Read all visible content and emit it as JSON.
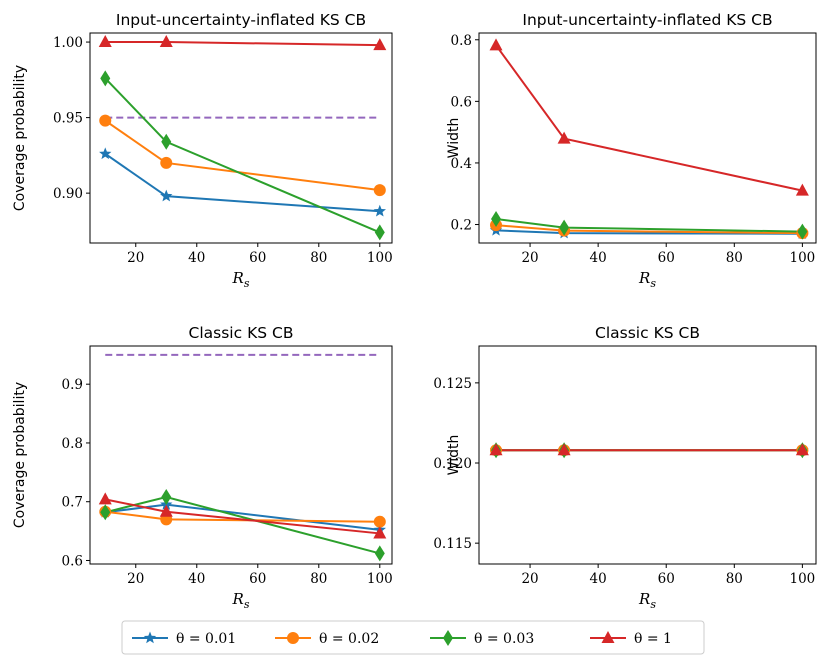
{
  "colors": {
    "theta_001": "#1f77b4",
    "theta_002": "#ff7f0e",
    "theta_003": "#2ca02c",
    "theta_1": "#d62728",
    "reference": "#9467bd"
  },
  "legend": {
    "placement": "bottom-center",
    "entries": [
      {
        "label": "θ = 0.01",
        "marker": "star-icon",
        "color": "#1f77b4"
      },
      {
        "label": "θ = 0.02",
        "marker": "circle-icon",
        "color": "#ff7f0e"
      },
      {
        "label": "θ = 0.03",
        "marker": "diamond-icon",
        "color": "#2ca02c"
      },
      {
        "label": "θ = 1",
        "marker": "triangle-icon",
        "color": "#d62728"
      }
    ]
  },
  "chart_data": [
    {
      "type": "line",
      "title": "Input-uncertainty-inflated KS CB",
      "xlabel": "R_s",
      "ylabel": "Coverage probability",
      "x": [
        10,
        30,
        100
      ],
      "xlim": [
        5,
        104
      ],
      "ylim": [
        0.867,
        1.006
      ],
      "xticks": [
        20,
        40,
        60,
        80,
        100
      ],
      "yticks": [
        0.9,
        0.95,
        1.0
      ],
      "ytick_labels": [
        "0.90",
        "0.95",
        "1.00"
      ],
      "reference_line": {
        "y": 0.95,
        "style": "dashed",
        "x_range": [
          10,
          100
        ]
      },
      "series": [
        {
          "name": "θ = 0.01",
          "values": [
            0.926,
            0.898,
            0.888
          ]
        },
        {
          "name": "θ = 0.02",
          "values": [
            0.948,
            0.92,
            0.902
          ]
        },
        {
          "name": "θ = 0.03",
          "values": [
            0.976,
            0.934,
            0.874
          ]
        },
        {
          "name": "θ = 1",
          "values": [
            1.0,
            1.0,
            0.998
          ]
        }
      ]
    },
    {
      "type": "line",
      "title": "Input-uncertainty-inflated KS CB",
      "xlabel": "R_s",
      "ylabel": "Width",
      "x": [
        10,
        30,
        100
      ],
      "xlim": [
        5,
        104
      ],
      "ylim": [
        0.14,
        0.822
      ],
      "xticks": [
        20,
        40,
        60,
        80,
        100
      ],
      "yticks": [
        0.2,
        0.4,
        0.6,
        0.8
      ],
      "ytick_labels": [
        "0.2",
        "0.4",
        "0.6",
        "0.8"
      ],
      "series": [
        {
          "name": "θ = 0.01",
          "values": [
            0.181,
            0.172,
            0.17
          ]
        },
        {
          "name": "θ = 0.02",
          "values": [
            0.198,
            0.18,
            0.172
          ]
        },
        {
          "name": "θ = 0.03",
          "values": [
            0.218,
            0.19,
            0.177
          ]
        },
        {
          "name": "θ = 1",
          "values": [
            0.782,
            0.479,
            0.31
          ]
        }
      ]
    },
    {
      "type": "line",
      "title": "Classic KS CB",
      "xlabel": "R_s",
      "ylabel": "Coverage probability",
      "x": [
        10,
        30,
        100
      ],
      "xlim": [
        5,
        104
      ],
      "ylim": [
        0.594,
        0.965
      ],
      "xticks": [
        20,
        40,
        60,
        80,
        100
      ],
      "yticks": [
        0.6,
        0.7,
        0.8,
        0.9
      ],
      "ytick_labels": [
        "0.6",
        "0.7",
        "0.8",
        "0.9"
      ],
      "reference_line": {
        "y": 0.95,
        "style": "dashed",
        "x_range": [
          10,
          100
        ]
      },
      "series": [
        {
          "name": "θ = 0.01",
          "values": [
            0.682,
            0.695,
            0.652
          ]
        },
        {
          "name": "θ = 0.02",
          "values": [
            0.683,
            0.67,
            0.666
          ]
        },
        {
          "name": "θ = 0.03",
          "values": [
            0.682,
            0.708,
            0.612
          ]
        },
        {
          "name": "θ = 1",
          "values": [
            0.704,
            0.683,
            0.646
          ]
        }
      ]
    },
    {
      "type": "line",
      "title": "Classic KS CB",
      "xlabel": "R_s",
      "ylabel": "Width",
      "x": [
        10,
        30,
        100
      ],
      "xlim": [
        5,
        104
      ],
      "ylim": [
        0.1137,
        0.1273
      ],
      "xticks": [
        20,
        40,
        60,
        80,
        100
      ],
      "yticks": [
        0.115,
        0.12,
        0.125
      ],
      "ytick_labels": [
        "0.115",
        "0.120",
        "0.125"
      ],
      "series": [
        {
          "name": "θ = 0.01",
          "values": [
            0.1208,
            0.1208,
            0.1208
          ]
        },
        {
          "name": "θ = 0.02",
          "values": [
            0.1208,
            0.1208,
            0.1208
          ]
        },
        {
          "name": "θ = 0.03",
          "values": [
            0.1208,
            0.1208,
            0.1208
          ]
        },
        {
          "name": "θ = 1",
          "values": [
            0.1208,
            0.1208,
            0.1208
          ]
        }
      ]
    }
  ]
}
